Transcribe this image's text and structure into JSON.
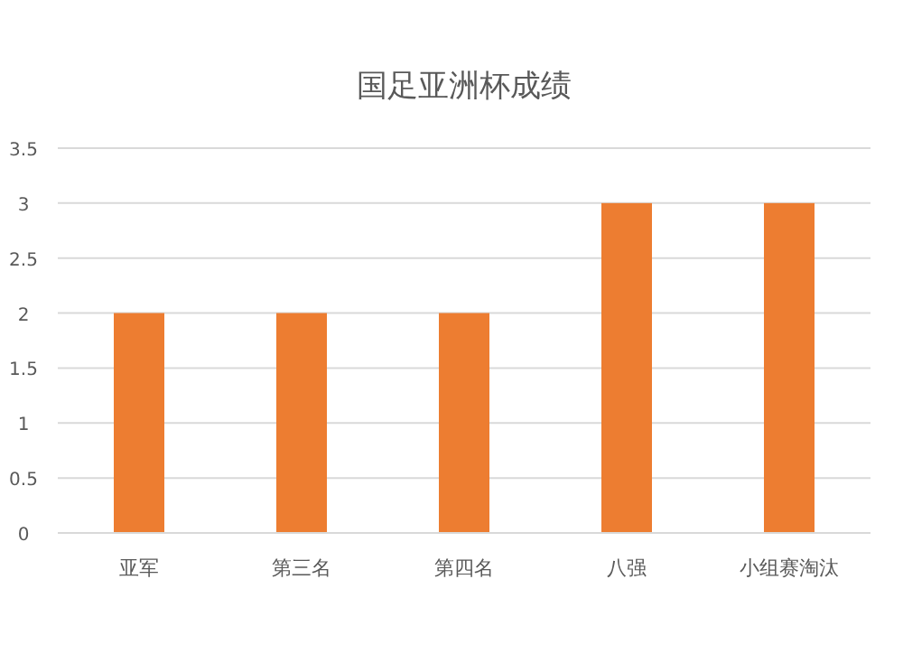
{
  "chart_data": {
    "type": "bar",
    "title": "国足亚洲杯成绩",
    "categories": [
      "亚军",
      "第三名",
      "第四名",
      "八强",
      "小组赛淘汰"
    ],
    "values": [
      2,
      2,
      2,
      3,
      3
    ],
    "color": "#ed7d31",
    "ylim": [
      0,
      3.5
    ],
    "yticks": [
      0,
      0.5,
      1,
      1.5,
      2,
      2.5,
      3,
      3.5
    ],
    "grid": "y",
    "legend": false
  }
}
